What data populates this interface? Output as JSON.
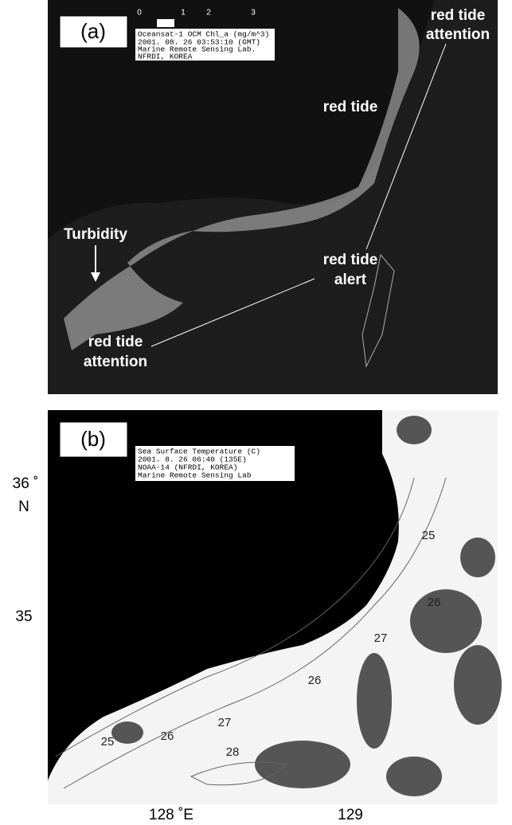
{
  "panels": [
    {
      "label": "(a)",
      "colorbar_ticks": [
        "0",
        "1",
        "2",
        "3"
      ],
      "legend": [
        "Oceansat-1 OCM Chl_a (mg/m^3)",
        "2001. 08. 26 03:53:10 (GMT)",
        "Marine Remote Sensing Lab.",
        "NFRDI, KOREA"
      ],
      "annotations": [
        [
          "red tide",
          "attention"
        ],
        [
          "red tide"
        ],
        [
          "Turbidity"
        ],
        [
          "red tide",
          "alert"
        ],
        [
          "red tide",
          "attention"
        ]
      ]
    },
    {
      "label": "(b)",
      "legend": [
        "Sea Surface Temperature (C)",
        "2001. 8. 26 06:40 (135E)",
        "NOAA-14 (NFRDI, KOREA)",
        "Marine Remote Sensing Lab"
      ],
      "contour_labels": [
        "25",
        "26",
        "27",
        "26",
        "27",
        "26",
        "25",
        "28"
      ]
    }
  ],
  "axes": {
    "lat": [
      "36 ˚",
      "N",
      "35"
    ],
    "lon": [
      "128 ˚E",
      "129"
    ]
  }
}
